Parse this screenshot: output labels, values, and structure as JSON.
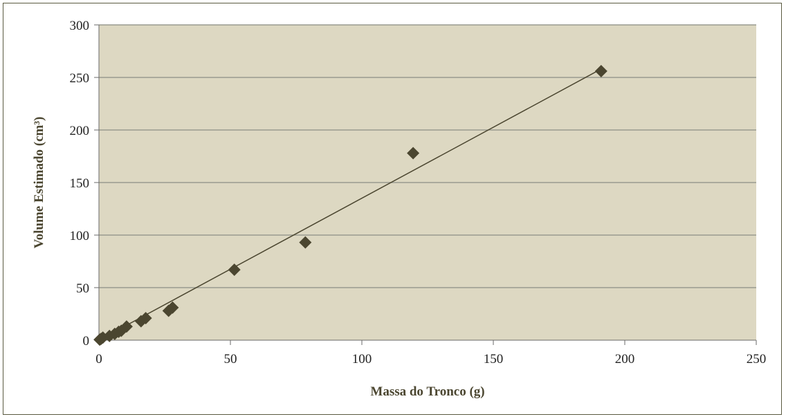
{
  "chart_data": {
    "type": "scatter",
    "title": "",
    "xlabel": "Massa do Tronco (g)",
    "ylabel": "Volume Estimado (cm³)",
    "xlim": [
      0,
      250
    ],
    "ylim": [
      0,
      300
    ],
    "xticks": [
      0,
      50,
      100,
      150,
      200,
      250
    ],
    "yticks": [
      0,
      50,
      100,
      150,
      200,
      250,
      300
    ],
    "x_tick_labels": [
      "0",
      "50",
      "100",
      "150",
      "200",
      "250"
    ],
    "y_tick_labels": [
      "0",
      "50",
      "100",
      "150",
      "200",
      "250",
      "300"
    ],
    "grid": "horizontal",
    "legend": "none",
    "colors": {
      "plot_background": "#ddd8c2",
      "marker": "#4b4630",
      "trendline": "#4b4630",
      "gridline": "#9a9a90"
    },
    "series": [
      {
        "marker": "diamond",
        "points": [
          {
            "x": 0.3,
            "y": 0.5
          },
          {
            "x": 0.8,
            "y": 1.2
          },
          {
            "x": 1.5,
            "y": 2.5
          },
          {
            "x": 4,
            "y": 4
          },
          {
            "x": 6,
            "y": 6
          },
          {
            "x": 7.5,
            "y": 8
          },
          {
            "x": 8.5,
            "y": 9
          },
          {
            "x": 10.5,
            "y": 13
          },
          {
            "x": 16,
            "y": 18
          },
          {
            "x": 17.8,
            "y": 21
          },
          {
            "x": 26.5,
            "y": 28
          },
          {
            "x": 28,
            "y": 31
          },
          {
            "x": 51.5,
            "y": 67
          },
          {
            "x": 78.5,
            "y": 93
          },
          {
            "x": 119.5,
            "y": 178
          },
          {
            "x": 191,
            "y": 256
          }
        ]
      }
    ],
    "trendline": {
      "type": "linear",
      "x": [
        0,
        191
      ],
      "y": [
        0,
        258
      ]
    }
  }
}
